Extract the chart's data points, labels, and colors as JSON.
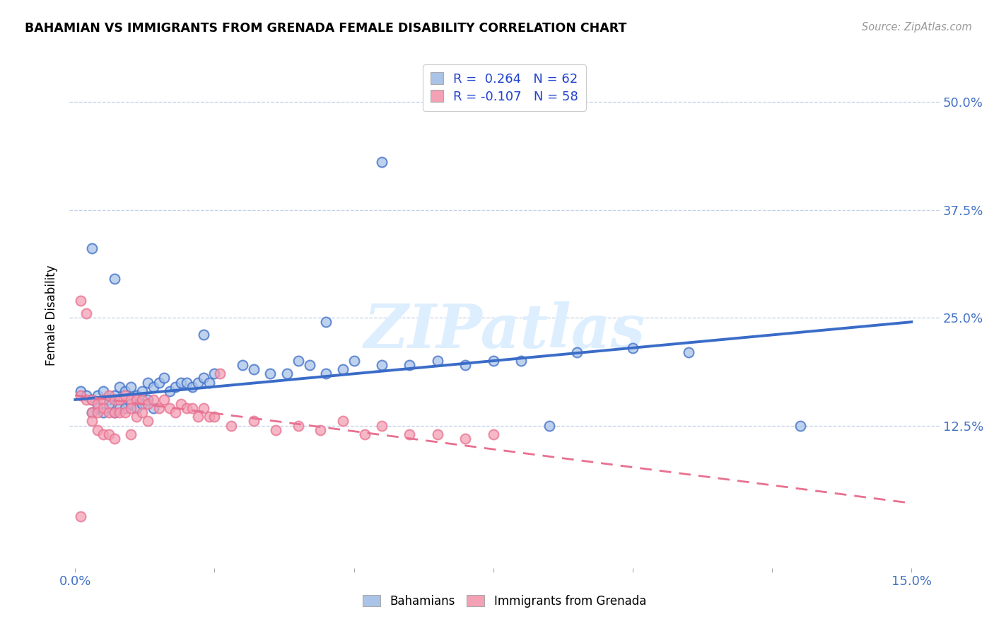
{
  "title": "BAHAMIAN VS IMMIGRANTS FROM GRENADA FEMALE DISABILITY CORRELATION CHART",
  "source": "Source: ZipAtlas.com",
  "ylabel": "Female Disability",
  "ytick_vals": [
    0.125,
    0.25,
    0.375,
    0.5
  ],
  "ytick_labels": [
    "12.5%",
    "25.0%",
    "37.5%",
    "50.0%"
  ],
  "xlim": [
    -0.001,
    0.155
  ],
  "ylim": [
    -0.04,
    0.545
  ],
  "blue_scatter_color": "#aac4e8",
  "pink_scatter_color": "#f4a0b5",
  "blue_line_color": "#3a6cc8",
  "pink_line_color": "#e87090",
  "blue_line_x": [
    0.0,
    0.15
  ],
  "blue_line_y": [
    0.155,
    0.245
  ],
  "pink_line_x": [
    0.0,
    0.15
  ],
  "pink_line_y": [
    0.16,
    0.035
  ],
  "watermark_color": "#ddeeff",
  "grid_color": "#c0d0e8",
  "axis_label_color": "#4472c4",
  "legend1_text": "R =  0.264   N = 62",
  "legend2_text": "R = -0.107   N = 58",
  "bottom_legend1": "Bahamians",
  "bottom_legend2": "Immigrants from Grenada",
  "marker_size": 100,
  "marker_lw": 1.5,
  "blue_pts_x": [
    0.001,
    0.002,
    0.003,
    0.004,
    0.005,
    0.006,
    0.007,
    0.008,
    0.009,
    0.01,
    0.011,
    0.012,
    0.013,
    0.014,
    0.015,
    0.016,
    0.017,
    0.018,
    0.019,
    0.02,
    0.021,
    0.022,
    0.023,
    0.024,
    0.025,
    0.003,
    0.004,
    0.005,
    0.006,
    0.007,
    0.008,
    0.009,
    0.01,
    0.011,
    0.012,
    0.013,
    0.014,
    0.03,
    0.032,
    0.035,
    0.038,
    0.04,
    0.042,
    0.045,
    0.048,
    0.05,
    0.055,
    0.06,
    0.065,
    0.07,
    0.075,
    0.08,
    0.09,
    0.1,
    0.11,
    0.085,
    0.13,
    0.045,
    0.023,
    0.007,
    0.055,
    0.003
  ],
  "blue_pts_y": [
    0.165,
    0.16,
    0.155,
    0.16,
    0.165,
    0.155,
    0.16,
    0.17,
    0.165,
    0.17,
    0.16,
    0.165,
    0.175,
    0.17,
    0.175,
    0.18,
    0.165,
    0.17,
    0.175,
    0.175,
    0.17,
    0.175,
    0.18,
    0.175,
    0.185,
    0.14,
    0.145,
    0.14,
    0.15,
    0.14,
    0.145,
    0.145,
    0.15,
    0.145,
    0.15,
    0.155,
    0.145,
    0.195,
    0.19,
    0.185,
    0.185,
    0.2,
    0.195,
    0.185,
    0.19,
    0.2,
    0.195,
    0.195,
    0.2,
    0.195,
    0.2,
    0.2,
    0.21,
    0.215,
    0.21,
    0.125,
    0.125,
    0.245,
    0.23,
    0.295,
    0.43,
    0.33
  ],
  "pink_pts_x": [
    0.001,
    0.002,
    0.003,
    0.004,
    0.005,
    0.006,
    0.007,
    0.008,
    0.009,
    0.01,
    0.011,
    0.012,
    0.013,
    0.014,
    0.015,
    0.016,
    0.017,
    0.018,
    0.019,
    0.02,
    0.021,
    0.022,
    0.023,
    0.024,
    0.025,
    0.003,
    0.004,
    0.005,
    0.006,
    0.007,
    0.008,
    0.009,
    0.01,
    0.011,
    0.012,
    0.013,
    0.028,
    0.032,
    0.036,
    0.04,
    0.044,
    0.048,
    0.052,
    0.055,
    0.06,
    0.065,
    0.07,
    0.075,
    0.001,
    0.002,
    0.003,
    0.004,
    0.005,
    0.006,
    0.007,
    0.01,
    0.026,
    0.001
  ],
  "pink_pts_y": [
    0.16,
    0.155,
    0.155,
    0.15,
    0.155,
    0.16,
    0.155,
    0.155,
    0.16,
    0.155,
    0.155,
    0.155,
    0.15,
    0.155,
    0.145,
    0.155,
    0.145,
    0.14,
    0.15,
    0.145,
    0.145,
    0.135,
    0.145,
    0.135,
    0.135,
    0.14,
    0.14,
    0.145,
    0.14,
    0.14,
    0.14,
    0.14,
    0.145,
    0.135,
    0.14,
    0.13,
    0.125,
    0.13,
    0.12,
    0.125,
    0.12,
    0.13,
    0.115,
    0.125,
    0.115,
    0.115,
    0.11,
    0.115,
    0.27,
    0.255,
    0.13,
    0.12,
    0.115,
    0.115,
    0.11,
    0.115,
    0.185,
    0.02
  ]
}
